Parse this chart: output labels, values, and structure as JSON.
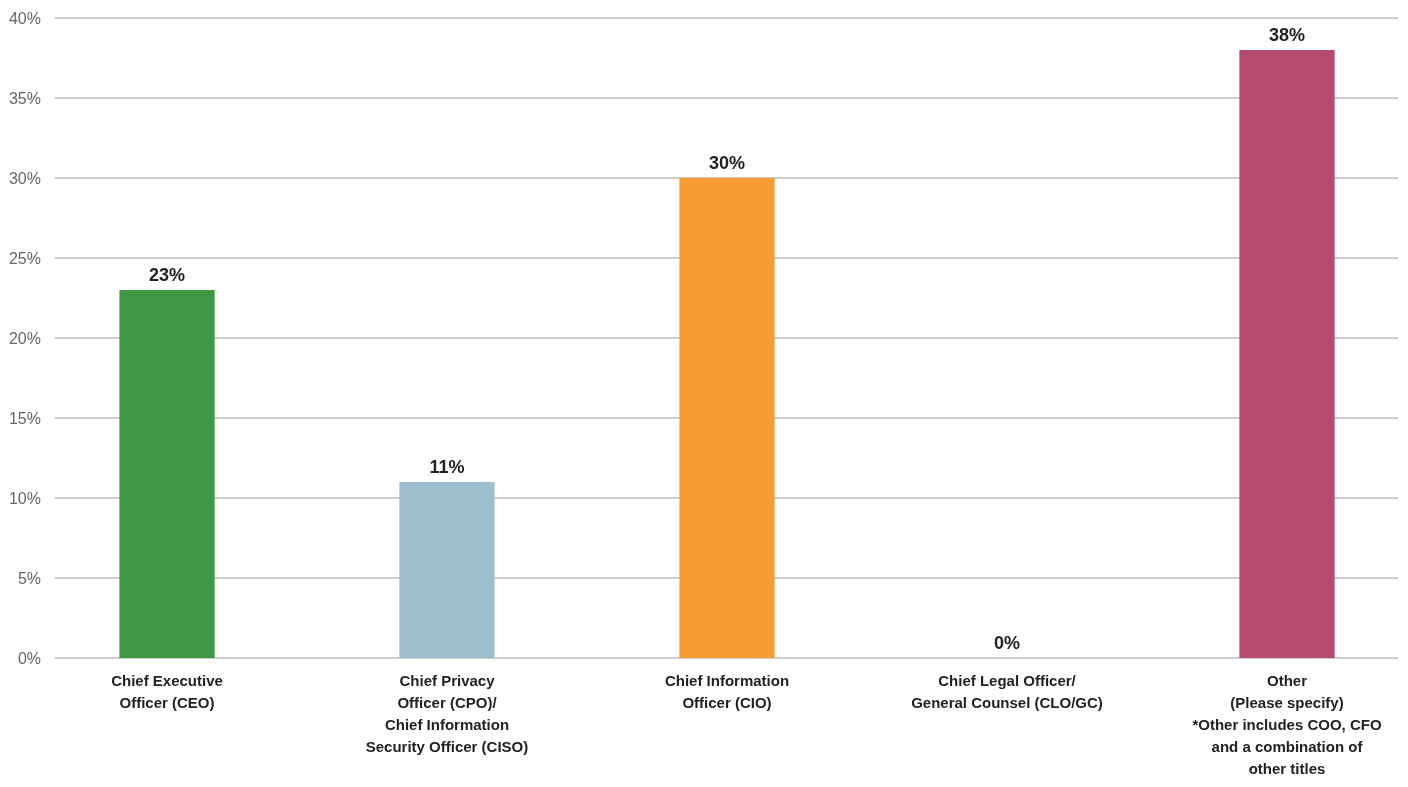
{
  "chart_data": {
    "type": "bar",
    "categories": [
      "Chief Executive\nOfficer (CEO)",
      "Chief Privacy\nOfficer (CPO)/\nChief Information\nSecurity Officer (CISO)",
      "Chief Information\nOfficer (CIO)",
      "Chief Legal Officer/\nGeneral Counsel (CLO/GC)",
      "Other\n(Please specify)\n*Other includes COO, CFO\nand a combination of\nother titles"
    ],
    "values": [
      23,
      11,
      30,
      0,
      38
    ],
    "colors": [
      "#3f9843",
      "#9bbfce",
      "#f89b33",
      "#888888",
      "#b54a71"
    ],
    "value_labels": [
      "23%",
      "11%",
      "30%",
      "0%",
      "38%"
    ],
    "ylim": [
      0,
      40
    ],
    "yticks": [
      {
        "value": 0,
        "label": "0%"
      },
      {
        "value": 5,
        "label": "5%"
      },
      {
        "value": 10,
        "label": "10%"
      },
      {
        "value": 15,
        "label": "15%"
      },
      {
        "value": 20,
        "label": "20%"
      },
      {
        "value": 25,
        "label": "25%"
      },
      {
        "value": 30,
        "label": "30%"
      },
      {
        "value": 35,
        "label": "35%"
      },
      {
        "value": 40,
        "label": "40%"
      }
    ],
    "grid": "y"
  }
}
